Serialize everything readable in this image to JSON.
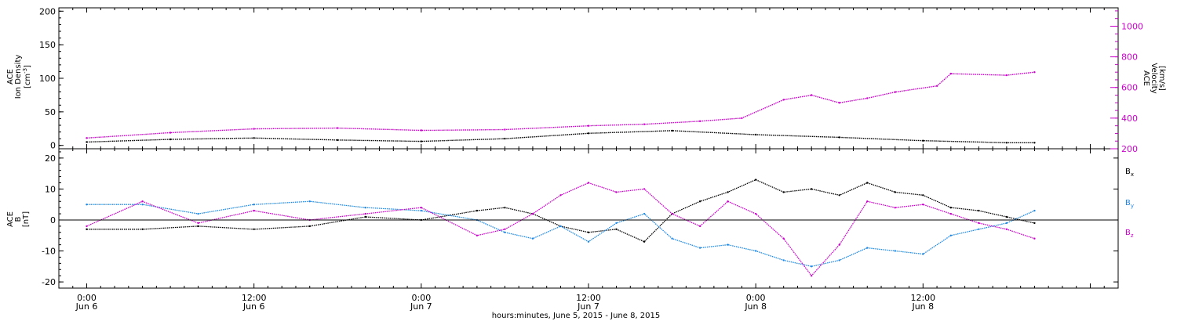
{
  "chart_data": [
    {
      "type": "scatter",
      "panel": "top",
      "left_axis": {
        "label_lines": [
          "ACE",
          "Ion Density"
        ],
        "unit": "[cm",
        "unit_sup": "-3",
        "unit_close": "]",
        "ylim": [
          -5,
          205
        ],
        "ticks": [
          "0",
          "50",
          "100",
          "150",
          "200"
        ],
        "color": "#000000"
      },
      "right_axis": {
        "label_lines": [
          "ACE",
          "Velocity"
        ],
        "unit": "[km/s]",
        "ylim": [
          200,
          1120
        ],
        "ticks": [
          "200",
          "400",
          "600",
          "800",
          "1000"
        ],
        "color": "#cc00cc"
      },
      "series": [
        {
          "color": "#000000",
          "axis": "left",
          "x_hours": [
            0,
            6,
            12,
            18,
            24,
            30,
            36,
            42,
            48,
            54,
            60,
            66,
            68
          ],
          "values": [
            5,
            9,
            11,
            8,
            6,
            10,
            18,
            22,
            16,
            12,
            7,
            4,
            4
          ]
        },
        {
          "color": "#cc00cc",
          "axis": "right",
          "x_hours": [
            0,
            6,
            12,
            18,
            24,
            30,
            36,
            40,
            44,
            47,
            50,
            52,
            54,
            56,
            58,
            61,
            62,
            66,
            68
          ],
          "values": [
            270,
            305,
            330,
            335,
            320,
            325,
            350,
            360,
            380,
            400,
            520,
            550,
            500,
            530,
            570,
            610,
            690,
            680,
            700
          ]
        }
      ]
    },
    {
      "type": "scatter",
      "panel": "bottom",
      "left_axis": {
        "label_lines": [
          "ACE",
          "B"
        ],
        "unit": "[nT]",
        "ylim": [
          -22,
          23
        ],
        "ticks": [
          "-20",
          "-10",
          "0",
          "10",
          "20"
        ],
        "color": "#000000"
      },
      "legend": [
        {
          "base": "B",
          "sub": "x",
          "color": "#000000"
        },
        {
          "base": "B",
          "sub": "y",
          "color": "#1e88e5"
        },
        {
          "base": "B",
          "sub": "z",
          "color": "#cc00cc"
        }
      ],
      "series": [
        {
          "color": "#000000",
          "x_hours": [
            0,
            4,
            8,
            12,
            16,
            20,
            24,
            28,
            30,
            32,
            34,
            36,
            38,
            40,
            42,
            44,
            46,
            48,
            50,
            52,
            54,
            56,
            58,
            60,
            62,
            64,
            66,
            68
          ],
          "values": [
            -3,
            -3,
            -2,
            -3,
            -2,
            1,
            0,
            3,
            4,
            2,
            -2,
            -4,
            -3,
            -7,
            2,
            6,
            9,
            13,
            9,
            10,
            8,
            12,
            9,
            8,
            4,
            3,
            1,
            -1
          ]
        },
        {
          "color": "#1e88e5",
          "x_hours": [
            0,
            4,
            8,
            12,
            16,
            20,
            24,
            28,
            30,
            32,
            34,
            36,
            38,
            40,
            42,
            44,
            46,
            48,
            50,
            52,
            54,
            56,
            58,
            60,
            62,
            64,
            66,
            68
          ],
          "values": [
            5,
            5,
            2,
            5,
            6,
            4,
            3,
            0,
            -4,
            -6,
            -2,
            -7,
            -1,
            2,
            -6,
            -9,
            -8,
            -10,
            -13,
            -15,
            -13,
            -9,
            -10,
            -11,
            -5,
            -3,
            -1,
            3
          ]
        },
        {
          "color": "#cc00cc",
          "x_hours": [
            0,
            4,
            8,
            12,
            16,
            20,
            24,
            28,
            30,
            32,
            34,
            36,
            38,
            40,
            42,
            44,
            46,
            48,
            50,
            52,
            54,
            56,
            58,
            60,
            62,
            64,
            66,
            68
          ],
          "values": [
            -2,
            6,
            -1,
            3,
            0,
            2,
            4,
            -5,
            -3,
            2,
            8,
            12,
            9,
            10,
            2,
            -2,
            6,
            2,
            -6,
            -18,
            -8,
            6,
            4,
            5,
            2,
            -1,
            -3,
            -6
          ]
        }
      ],
      "zero_line": 0
    }
  ],
  "x_axis": {
    "range_hours": [
      -2,
      74
    ],
    "major_ticks": [
      {
        "hour": 0,
        "time": "0:00",
        "date": "Jun 6"
      },
      {
        "hour": 12,
        "time": "12:00",
        "date": "Jun 6"
      },
      {
        "hour": 24,
        "time": "0:00",
        "date": "Jun 7"
      },
      {
        "hour": 36,
        "time": "12:00",
        "date": "Jun 7"
      },
      {
        "hour": 48,
        "time": "0:00",
        "date": "Jun 8"
      },
      {
        "hour": 60,
        "time": "12:00",
        "date": "Jun 8"
      }
    ],
    "minor_tick_hours": 1,
    "label": "hours:minutes, June  5, 2015 - June  8, 2015"
  }
}
